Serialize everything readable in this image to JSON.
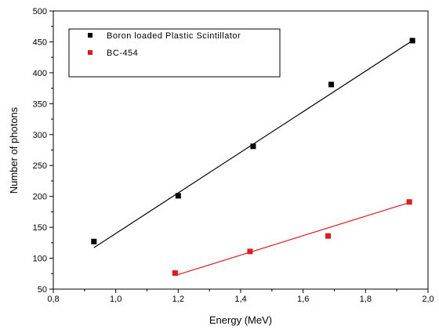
{
  "chart_data": {
    "type": "scatter",
    "xlabel": "Energy (MeV)",
    "ylabel": "Number of photons",
    "xlim": [
      0.8,
      2.0
    ],
    "ylim": [
      50,
      500
    ],
    "xticks": [
      "0,8",
      "1,0",
      "1,2",
      "1,4",
      "1,6",
      "1,8",
      "2,0"
    ],
    "xtick_values": [
      0.8,
      1.0,
      1.2,
      1.4,
      1.6,
      1.8,
      2.0
    ],
    "yticks": [
      "50",
      "100",
      "150",
      "200",
      "250",
      "300",
      "350",
      "400",
      "450",
      "500"
    ],
    "ytick_values": [
      50,
      100,
      150,
      200,
      250,
      300,
      350,
      400,
      450,
      500
    ],
    "grid": false,
    "legend_position": "top-left",
    "series": [
      {
        "name": "Boron loaded Plastic Scintillator",
        "color": "#000000",
        "marker": "square",
        "points": [
          [
            0.93,
            127
          ],
          [
            1.2,
            201
          ],
          [
            1.44,
            281
          ],
          [
            1.69,
            381
          ],
          [
            1.95,
            452
          ]
        ],
        "fit_line": [
          [
            0.93,
            117
          ],
          [
            1.95,
            452
          ]
        ]
      },
      {
        "name": "BC-454",
        "color": "#e31a1c",
        "marker": "square",
        "points": [
          [
            1.19,
            76
          ],
          [
            1.43,
            111
          ],
          [
            1.68,
            136
          ],
          [
            1.94,
            191
          ]
        ],
        "fit_line": [
          [
            1.19,
            72
          ],
          [
            1.94,
            190
          ]
        ]
      }
    ]
  }
}
